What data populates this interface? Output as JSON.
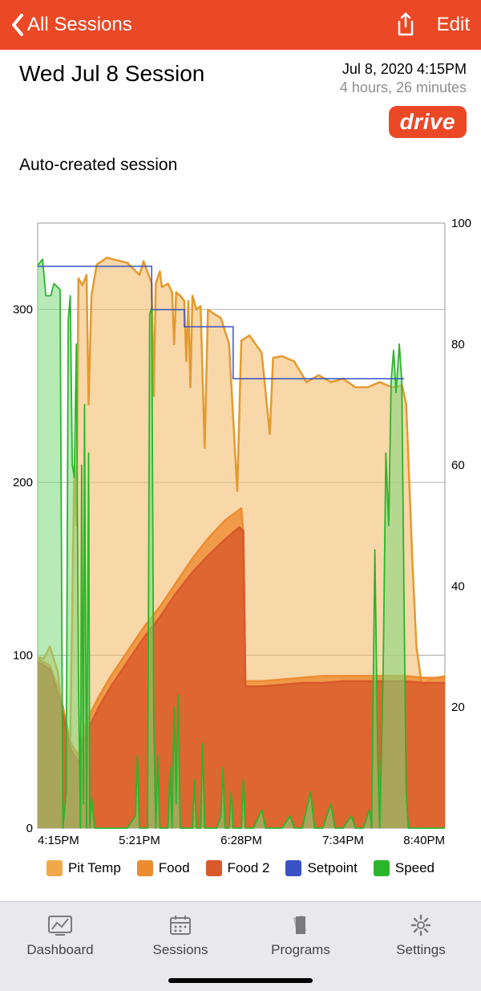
{
  "nav": {
    "back_label": "All Sessions",
    "edit_label": "Edit"
  },
  "header": {
    "title": "Wed Jul 8 Session",
    "datetime": "Jul 8, 2020 4:15PM",
    "duration": "4 hours, 26 minutes",
    "drive_badge": "drive"
  },
  "subtitle": "Auto-created session",
  "chart": {
    "type": "multi-axis-area-line",
    "background_color": "#ffffff",
    "grid_color": "#999999",
    "plot_border_color": "#999999",
    "left_axis": {
      "label": null,
      "min": 0,
      "max": 350,
      "ticks": [
        0,
        100,
        200,
        300
      ],
      "tick_labels": [
        "0",
        "100",
        "200",
        "300"
      ]
    },
    "right_axis": {
      "label": null,
      "min": 0,
      "max": 100,
      "ticks": [
        20,
        40,
        60,
        80,
        100
      ],
      "tick_labels": [
        "20",
        "40",
        "60",
        "80",
        "100"
      ]
    },
    "x_axis": {
      "min": "4:15PM",
      "max": "8:40PM",
      "ticks": [
        "4:15PM",
        "5:21PM",
        "6:28PM",
        "7:34PM",
        "8:40PM"
      ]
    },
    "series": [
      {
        "name": "Pit Temp",
        "type": "area",
        "axis": "left",
        "stroke": "#e59a2e",
        "fill": "#f4c17b",
        "fill_opacity": 0.65,
        "stroke_width": 2.5,
        "data": [
          [
            0,
            99
          ],
          [
            0.015,
            98
          ],
          [
            0.03,
            105
          ],
          [
            0.05,
            90
          ],
          [
            0.065,
            52
          ],
          [
            0.08,
            48
          ],
          [
            0.09,
            210
          ],
          [
            0.095,
            175
          ],
          [
            0.1,
            318
          ],
          [
            0.11,
            314
          ],
          [
            0.12,
            320
          ],
          [
            0.125,
            245
          ],
          [
            0.132,
            308
          ],
          [
            0.145,
            326
          ],
          [
            0.17,
            330
          ],
          [
            0.22,
            327
          ],
          [
            0.25,
            320
          ],
          [
            0.26,
            328
          ],
          [
            0.28,
            315
          ],
          [
            0.285,
            250
          ],
          [
            0.29,
            315
          ],
          [
            0.3,
            322
          ],
          [
            0.305,
            313
          ],
          [
            0.32,
            315
          ],
          [
            0.33,
            310
          ],
          [
            0.335,
            280
          ],
          [
            0.34,
            310
          ],
          [
            0.35,
            308
          ],
          [
            0.36,
            305
          ],
          [
            0.365,
            270
          ],
          [
            0.37,
            305
          ],
          [
            0.375,
            255
          ],
          [
            0.38,
            308
          ],
          [
            0.39,
            300
          ],
          [
            0.4,
            302
          ],
          [
            0.41,
            220
          ],
          [
            0.418,
            300
          ],
          [
            0.43,
            298
          ],
          [
            0.45,
            295
          ],
          [
            0.47,
            280
          ],
          [
            0.49,
            195
          ],
          [
            0.5,
            282
          ],
          [
            0.52,
            285
          ],
          [
            0.55,
            275
          ],
          [
            0.57,
            228
          ],
          [
            0.578,
            272
          ],
          [
            0.6,
            273
          ],
          [
            0.63,
            270
          ],
          [
            0.66,
            258
          ],
          [
            0.69,
            262
          ],
          [
            0.72,
            258
          ],
          [
            0.75,
            260
          ],
          [
            0.78,
            255
          ],
          [
            0.81,
            255
          ],
          [
            0.84,
            258
          ],
          [
            0.87,
            255
          ],
          [
            0.895,
            256
          ],
          [
            0.905,
            245
          ],
          [
            0.92,
            155
          ],
          [
            0.93,
            105
          ],
          [
            0.945,
            80
          ],
          [
            0.96,
            86
          ],
          [
            0.98,
            87
          ],
          [
            1.0,
            88
          ]
        ]
      },
      {
        "name": "Food",
        "type": "area",
        "axis": "left",
        "stroke": "#ec8c31",
        "fill": "#ec8c31",
        "fill_opacity": 0.8,
        "stroke_width": 2.5,
        "data": [
          [
            0,
            98
          ],
          [
            0.03,
            94
          ],
          [
            0.055,
            78
          ],
          [
            0.08,
            50
          ],
          [
            0.1,
            42
          ],
          [
            0.12,
            62
          ],
          [
            0.15,
            76
          ],
          [
            0.18,
            88
          ],
          [
            0.22,
            102
          ],
          [
            0.26,
            116
          ],
          [
            0.3,
            128
          ],
          [
            0.34,
            142
          ],
          [
            0.38,
            156
          ],
          [
            0.42,
            168
          ],
          [
            0.46,
            178
          ],
          [
            0.5,
            185
          ],
          [
            0.505,
            170
          ],
          [
            0.51,
            85
          ],
          [
            0.55,
            85
          ],
          [
            0.6,
            86
          ],
          [
            0.65,
            87
          ],
          [
            0.7,
            88
          ],
          [
            0.75,
            88
          ],
          [
            0.8,
            88
          ],
          [
            0.85,
            88
          ],
          [
            0.9,
            88
          ],
          [
            0.95,
            87
          ],
          [
            1.0,
            87
          ]
        ]
      },
      {
        "name": "Food 2",
        "type": "area",
        "axis": "left",
        "stroke": "#d9592b",
        "fill": "#d9592b",
        "fill_opacity": 0.8,
        "stroke_width": 2.5,
        "data": [
          [
            0,
            96
          ],
          [
            0.03,
            92
          ],
          [
            0.055,
            74
          ],
          [
            0.08,
            46
          ],
          [
            0.1,
            38
          ],
          [
            0.12,
            55
          ],
          [
            0.15,
            70
          ],
          [
            0.18,
            82
          ],
          [
            0.22,
            96
          ],
          [
            0.26,
            110
          ],
          [
            0.3,
            122
          ],
          [
            0.34,
            136
          ],
          [
            0.38,
            148
          ],
          [
            0.42,
            158
          ],
          [
            0.46,
            167
          ],
          [
            0.495,
            174
          ],
          [
            0.505,
            172
          ],
          [
            0.51,
            82
          ],
          [
            0.55,
            82
          ],
          [
            0.6,
            83
          ],
          [
            0.65,
            84
          ],
          [
            0.7,
            84
          ],
          [
            0.75,
            85
          ],
          [
            0.8,
            85
          ],
          [
            0.85,
            85
          ],
          [
            0.9,
            85
          ],
          [
            0.95,
            84
          ],
          [
            1.0,
            84
          ]
        ]
      },
      {
        "name": "Setpoint",
        "type": "step-line",
        "axis": "left",
        "stroke": "#3a52c4",
        "fill": null,
        "stroke_width": 1.5,
        "data": [
          [
            0,
            325
          ],
          [
            0.28,
            325
          ],
          [
            0.28,
            300
          ],
          [
            0.36,
            300
          ],
          [
            0.36,
            290
          ],
          [
            0.48,
            290
          ],
          [
            0.48,
            260
          ],
          [
            0.9,
            260
          ]
        ]
      },
      {
        "name": "Speed",
        "type": "area",
        "axis": "right",
        "stroke": "#2bb52b",
        "fill": "#7ed87e",
        "fill_opacity": 0.55,
        "stroke_width": 1.8,
        "data": [
          [
            0,
            93
          ],
          [
            0.012,
            94
          ],
          [
            0.02,
            88
          ],
          [
            0.032,
            88
          ],
          [
            0.04,
            90
          ],
          [
            0.055,
            89
          ],
          [
            0.062,
            0
          ],
          [
            0.07,
            6
          ],
          [
            0.075,
            84
          ],
          [
            0.08,
            88
          ],
          [
            0.085,
            60
          ],
          [
            0.09,
            58
          ],
          [
            0.095,
            80
          ],
          [
            0.1,
            26
          ],
          [
            0.105,
            0
          ],
          [
            0.108,
            60
          ],
          [
            0.112,
            4
          ],
          [
            0.115,
            70
          ],
          [
            0.12,
            0
          ],
          [
            0.125,
            62
          ],
          [
            0.128,
            0
          ],
          [
            0.132,
            5
          ],
          [
            0.14,
            0
          ],
          [
            0.16,
            0
          ],
          [
            0.18,
            0
          ],
          [
            0.2,
            0
          ],
          [
            0.22,
            0
          ],
          [
            0.24,
            2
          ],
          [
            0.245,
            12
          ],
          [
            0.25,
            0
          ],
          [
            0.27,
            0
          ],
          [
            0.275,
            85
          ],
          [
            0.28,
            86
          ],
          [
            0.285,
            18
          ],
          [
            0.29,
            0
          ],
          [
            0.295,
            12
          ],
          [
            0.3,
            0
          ],
          [
            0.31,
            0
          ],
          [
            0.32,
            0
          ],
          [
            0.325,
            10
          ],
          [
            0.33,
            0
          ],
          [
            0.335,
            20
          ],
          [
            0.34,
            4
          ],
          [
            0.345,
            22
          ],
          [
            0.35,
            0
          ],
          [
            0.36,
            0
          ],
          [
            0.38,
            0
          ],
          [
            0.385,
            8
          ],
          [
            0.39,
            0
          ],
          [
            0.4,
            0
          ],
          [
            0.405,
            14
          ],
          [
            0.41,
            0
          ],
          [
            0.42,
            0
          ],
          [
            0.43,
            0
          ],
          [
            0.44,
            0
          ],
          [
            0.45,
            2
          ],
          [
            0.455,
            10
          ],
          [
            0.46,
            0
          ],
          [
            0.47,
            0
          ],
          [
            0.475,
            6
          ],
          [
            0.48,
            0
          ],
          [
            0.49,
            0
          ],
          [
            0.5,
            0
          ],
          [
            0.505,
            8
          ],
          [
            0.51,
            0
          ],
          [
            0.53,
            0
          ],
          [
            0.55,
            3
          ],
          [
            0.56,
            0
          ],
          [
            0.58,
            0
          ],
          [
            0.6,
            0
          ],
          [
            0.62,
            2
          ],
          [
            0.63,
            0
          ],
          [
            0.65,
            0
          ],
          [
            0.67,
            6
          ],
          [
            0.68,
            0
          ],
          [
            0.7,
            0
          ],
          [
            0.72,
            4
          ],
          [
            0.73,
            0
          ],
          [
            0.75,
            0
          ],
          [
            0.77,
            2
          ],
          [
            0.78,
            0
          ],
          [
            0.8,
            0
          ],
          [
            0.815,
            3
          ],
          [
            0.82,
            0
          ],
          [
            0.828,
            46
          ],
          [
            0.835,
            12
          ],
          [
            0.84,
            0
          ],
          [
            0.848,
            24
          ],
          [
            0.855,
            62
          ],
          [
            0.862,
            50
          ],
          [
            0.868,
            74
          ],
          [
            0.874,
            79
          ],
          [
            0.88,
            72
          ],
          [
            0.888,
            80
          ],
          [
            0.894,
            74
          ],
          [
            0.9,
            35
          ],
          [
            0.905,
            6
          ],
          [
            0.91,
            0
          ],
          [
            0.93,
            0
          ],
          [
            0.96,
            0
          ],
          [
            1.0,
            0
          ]
        ]
      }
    ],
    "legend": [
      {
        "label": "Pit Temp",
        "color": "#f0a94a"
      },
      {
        "label": "Food",
        "color": "#ec8c31"
      },
      {
        "label": "Food 2",
        "color": "#d9592b"
      },
      {
        "label": "Setpoint",
        "color": "#3a52c4"
      },
      {
        "label": "Speed",
        "color": "#2bb52b"
      }
    ]
  },
  "tabs": [
    {
      "label": "Dashboard"
    },
    {
      "label": "Sessions"
    },
    {
      "label": "Programs"
    },
    {
      "label": "Settings"
    }
  ]
}
